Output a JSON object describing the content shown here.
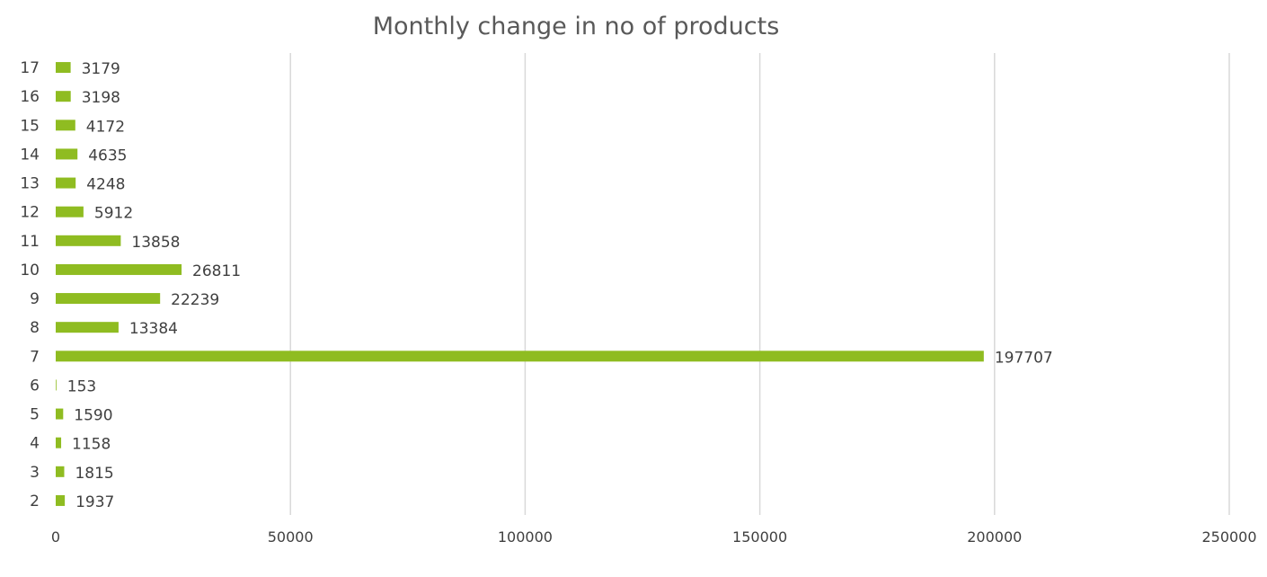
{
  "chart_data": {
    "type": "bar",
    "orientation": "horizontal",
    "title": "Monthly change in no of products",
    "xlabel": "",
    "ylabel": "",
    "categories": [
      "2",
      "3",
      "4",
      "5",
      "6",
      "7",
      "8",
      "9",
      "10",
      "11",
      "12",
      "13",
      "14",
      "15",
      "16",
      "17"
    ],
    "values": [
      1937,
      1815,
      1158,
      1590,
      153,
      197707,
      13384,
      22239,
      26811,
      13858,
      5912,
      4248,
      4635,
      4172,
      3198,
      3179
    ],
    "xlim": [
      0,
      250000
    ],
    "x_ticks": [
      "0",
      "50000",
      "100000",
      "150000",
      "200000",
      "250000"
    ],
    "x_tick_values": [
      0,
      50000,
      100000,
      150000,
      200000,
      250000
    ],
    "grid": "vertical major gridlines",
    "legend": "none",
    "data_labels": true,
    "bar_color": "#8fbc21",
    "grid_color": "#d9d9d9",
    "text_color": "#404040"
  }
}
